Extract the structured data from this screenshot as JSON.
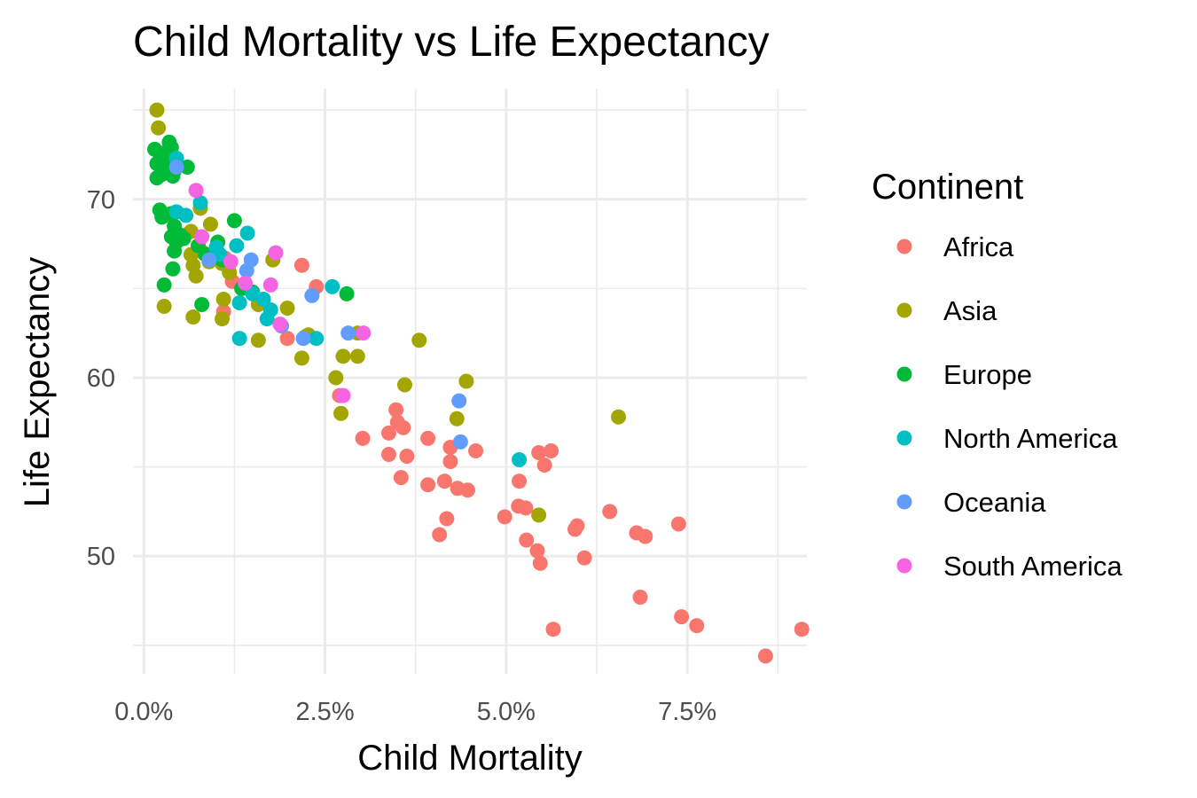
{
  "chart_data": {
    "type": "scatter",
    "title": "Child Mortality vs Life Expectancy",
    "xlabel": "Child Mortality",
    "ylabel": "Life Expectancy",
    "xlim": [
      -0.0015,
      0.0915
    ],
    "ylim": [
      43.4,
      76.2
    ],
    "x_ticks": [
      0,
      0.025,
      0.05,
      0.075
    ],
    "x_tick_labels": [
      "0.0%",
      "2.5%",
      "5.0%",
      "7.5%"
    ],
    "y_ticks": [
      50,
      60,
      70
    ],
    "y_tick_labels": [
      "50",
      "60",
      "70"
    ],
    "grid": true,
    "legend": {
      "title": "Continent",
      "position": "right"
    },
    "series": [
      {
        "name": "Africa",
        "color": "#F8766D",
        "points": [
          [
            0.0112,
            66.7
          ],
          [
            0.0122,
            65.4
          ],
          [
            0.011,
            63.7
          ],
          [
            0.0218,
            66.3
          ],
          [
            0.0238,
            65.1
          ],
          [
            0.0198,
            62.2
          ],
          [
            0.027,
            59.0
          ],
          [
            0.0302,
            56.6
          ],
          [
            0.0338,
            56.9
          ],
          [
            0.0348,
            58.2
          ],
          [
            0.035,
            57.5
          ],
          [
            0.0358,
            57.2
          ],
          [
            0.0338,
            55.7
          ],
          [
            0.0355,
            54.4
          ],
          [
            0.0363,
            55.6
          ],
          [
            0.0392,
            56.6
          ],
          [
            0.0392,
            54.0
          ],
          [
            0.0408,
            51.2
          ],
          [
            0.0415,
            54.2
          ],
          [
            0.0418,
            52.1
          ],
          [
            0.0423,
            55.3
          ],
          [
            0.0423,
            56.1
          ],
          [
            0.0433,
            53.8
          ],
          [
            0.0447,
            53.7
          ],
          [
            0.0458,
            55.9
          ],
          [
            0.0498,
            52.2
          ],
          [
            0.0518,
            54.2
          ],
          [
            0.0517,
            52.8
          ],
          [
            0.0527,
            52.7
          ],
          [
            0.0528,
            50.9
          ],
          [
            0.0543,
            50.3
          ],
          [
            0.0545,
            55.8
          ],
          [
            0.0547,
            49.6
          ],
          [
            0.0553,
            55.1
          ],
          [
            0.0562,
            55.9
          ],
          [
            0.0565,
            45.9
          ],
          [
            0.0595,
            51.5
          ],
          [
            0.0598,
            51.7
          ],
          [
            0.0608,
            49.9
          ],
          [
            0.0643,
            52.5
          ],
          [
            0.068,
            51.3
          ],
          [
            0.0685,
            47.7
          ],
          [
            0.0692,
            51.1
          ],
          [
            0.0738,
            51.8
          ],
          [
            0.0742,
            46.6
          ],
          [
            0.0763,
            46.1
          ],
          [
            0.0858,
            44.4
          ],
          [
            0.0908,
            45.9
          ]
        ]
      },
      {
        "name": "Asia",
        "color": "#A3A500",
        "points": [
          [
            0.0018,
            75.0
          ],
          [
            0.002,
            74.0
          ],
          [
            0.0028,
            64.0
          ],
          [
            0.0065,
            68.2
          ],
          [
            0.0065,
            66.9
          ],
          [
            0.0068,
            66.3
          ],
          [
            0.0072,
            65.7
          ],
          [
            0.0068,
            63.4
          ],
          [
            0.0078,
            69.5
          ],
          [
            0.0082,
            67.0
          ],
          [
            0.009,
            66.5
          ],
          [
            0.0092,
            68.6
          ],
          [
            0.0108,
            66.4
          ],
          [
            0.011,
            64.4
          ],
          [
            0.0108,
            63.3
          ],
          [
            0.0118,
            65.9
          ],
          [
            0.0158,
            64.1
          ],
          [
            0.0158,
            62.1
          ],
          [
            0.0178,
            66.6
          ],
          [
            0.0198,
            63.9
          ],
          [
            0.0218,
            61.1
          ],
          [
            0.0223,
            62.3
          ],
          [
            0.0227,
            62.4
          ],
          [
            0.0265,
            60.0
          ],
          [
            0.0272,
            58.0
          ],
          [
            0.0275,
            61.2
          ],
          [
            0.0295,
            61.2
          ],
          [
            0.0295,
            62.5
          ],
          [
            0.036,
            59.6
          ],
          [
            0.038,
            62.1
          ],
          [
            0.0432,
            57.7
          ],
          [
            0.0445,
            59.8
          ],
          [
            0.0545,
            52.3
          ],
          [
            0.0655,
            57.8
          ]
        ]
      },
      {
        "name": "Europe",
        "color": "#00BA38",
        "points": [
          [
            0.0015,
            72.8
          ],
          [
            0.0018,
            72.0
          ],
          [
            0.0018,
            71.2
          ],
          [
            0.0022,
            72.6
          ],
          [
            0.0025,
            71.4
          ],
          [
            0.0028,
            72.2
          ],
          [
            0.0032,
            72.4
          ],
          [
            0.0035,
            73.2
          ],
          [
            0.0035,
            71.8
          ],
          [
            0.004,
            71.3
          ],
          [
            0.0038,
            72.9
          ],
          [
            0.0042,
            71.6
          ],
          [
            0.0022,
            69.4
          ],
          [
            0.0025,
            69.0
          ],
          [
            0.0038,
            69.2
          ],
          [
            0.0038,
            67.9
          ],
          [
            0.0042,
            68.5
          ],
          [
            0.0045,
            67.6
          ],
          [
            0.0042,
            67.1
          ],
          [
            0.005,
            68.0
          ],
          [
            0.0055,
            67.8
          ],
          [
            0.004,
            66.1
          ],
          [
            0.0028,
            65.2
          ],
          [
            0.006,
            71.8
          ],
          [
            0.0075,
            67.4
          ],
          [
            0.008,
            64.1
          ],
          [
            0.0085,
            66.9
          ],
          [
            0.01,
            67.0
          ],
          [
            0.0102,
            67.6
          ],
          [
            0.0108,
            66.6
          ],
          [
            0.0125,
            68.8
          ],
          [
            0.0135,
            65.0
          ],
          [
            0.015,
            64.8
          ],
          [
            0.028,
            64.7
          ]
        ]
      },
      {
        "name": "North America",
        "color": "#00BFC4",
        "points": [
          [
            0.0045,
            72.3
          ],
          [
            0.0045,
            69.3
          ],
          [
            0.0058,
            69.1
          ],
          [
            0.0078,
            69.8
          ],
          [
            0.01,
            67.3
          ],
          [
            0.0105,
            66.9
          ],
          [
            0.0128,
            67.4
          ],
          [
            0.0143,
            68.1
          ],
          [
            0.015,
            64.7
          ],
          [
            0.0132,
            64.2
          ],
          [
            0.0132,
            62.2
          ],
          [
            0.0165,
            64.4
          ],
          [
            0.017,
            63.3
          ],
          [
            0.0175,
            63.8
          ],
          [
            0.0238,
            62.2
          ],
          [
            0.026,
            65.1
          ],
          [
            0.0518,
            55.4
          ]
        ]
      },
      {
        "name": "Oceania",
        "color": "#619CFF",
        "points": [
          [
            0.0045,
            71.8
          ],
          [
            0.009,
            66.6
          ],
          [
            0.0142,
            66.0
          ],
          [
            0.0148,
            66.6
          ],
          [
            0.019,
            62.9
          ],
          [
            0.022,
            62.2
          ],
          [
            0.0232,
            64.6
          ],
          [
            0.0282,
            62.5
          ],
          [
            0.0435,
            58.7
          ],
          [
            0.0437,
            56.4
          ]
        ]
      },
      {
        "name": "South America",
        "color": "#F564E3",
        "points": [
          [
            0.0072,
            70.5
          ],
          [
            0.008,
            67.9
          ],
          [
            0.012,
            66.5
          ],
          [
            0.014,
            65.3
          ],
          [
            0.0175,
            65.2
          ],
          [
            0.0182,
            67.0
          ],
          [
            0.0188,
            63.0
          ],
          [
            0.0275,
            59.0
          ],
          [
            0.0303,
            62.5
          ]
        ]
      }
    ]
  }
}
